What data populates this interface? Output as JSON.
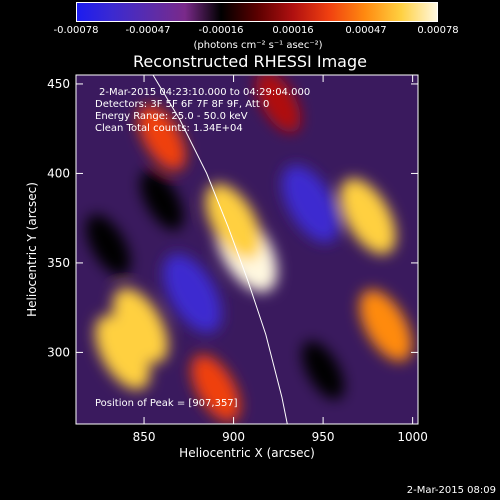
{
  "colorbar": {
    "ticks": [
      "-0.00078",
      "-0.00047",
      "-0.00016",
      "0.00016",
      "0.00047",
      "0.00078"
    ],
    "unit_label": "(photons cm⁻² s⁻¹ asec⁻²)",
    "colors": [
      "#1c1cf0",
      "#3c2ad0",
      "#5a2cac",
      "#7a2a8a",
      "#000000",
      "#5a0000",
      "#b01010",
      "#f04010",
      "#ff8a10",
      "#ffd040",
      "#fff8e0"
    ]
  },
  "chart_data": {
    "type": "heatmap",
    "title": "Reconstructed RHESSI Image",
    "xlabel": "Heliocentric X (arcsec)",
    "ylabel": "Heliocentric Y (arcsec)",
    "xlim": [
      812,
      1003
    ],
    "ylim": [
      260,
      455
    ],
    "xticks": [
      850,
      900,
      950,
      1000
    ],
    "yticks": [
      300,
      350,
      400,
      450
    ],
    "value_range": [
      -0.00078,
      0.00078
    ],
    "features": [
      {
        "x": 907,
        "y": 357,
        "level": 1.0
      },
      {
        "x": 900,
        "y": 373,
        "level": 0.75
      },
      {
        "x": 877,
        "y": 333,
        "level": -0.85
      },
      {
        "x": 943,
        "y": 383,
        "level": -0.8
      },
      {
        "x": 848,
        "y": 315,
        "level": 0.72
      },
      {
        "x": 838,
        "y": 300,
        "level": 0.7
      },
      {
        "x": 975,
        "y": 376,
        "level": 0.75
      },
      {
        "x": 985,
        "y": 315,
        "level": 0.6
      },
      {
        "x": 890,
        "y": 280,
        "level": 0.45
      },
      {
        "x": 860,
        "y": 420,
        "level": 0.4
      },
      {
        "x": 925,
        "y": 440,
        "level": 0.25
      },
      {
        "x": 830,
        "y": 360,
        "level": -0.25
      },
      {
        "x": 860,
        "y": 385,
        "level": -0.2
      },
      {
        "x": 950,
        "y": 290,
        "level": -0.15
      }
    ],
    "limb": [
      [
        855,
        455
      ],
      [
        870,
        430
      ],
      [
        885,
        400
      ],
      [
        897,
        370
      ],
      [
        908,
        340
      ],
      [
        918,
        310
      ],
      [
        927,
        275
      ],
      [
        930,
        260
      ]
    ]
  },
  "annotations": {
    "time_range": "2-Mar-2015 04:23:10.000 to 04:29:04.000",
    "detectors": "Detectors: 3F 5F 6F 7F 8F 9F, Att 0",
    "energy": "Energy Range: 25.0 - 50.0 keV",
    "clean": "Clean     Total counts: 1.34E+04",
    "peak": "Position of Peak = [907,357]"
  },
  "timestamp": "2-Mar-2015 08:09"
}
